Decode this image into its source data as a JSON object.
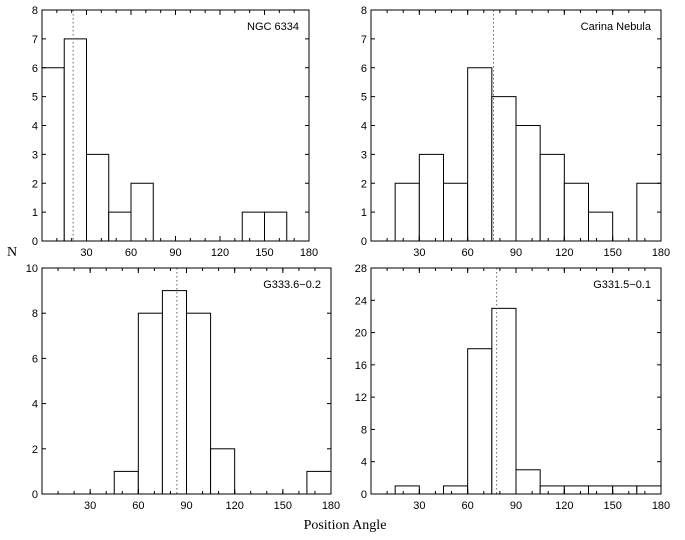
{
  "figure": {
    "shared_ylabel": "N",
    "shared_xlabel": "Position Angle"
  },
  "chart_data": [
    {
      "type": "bar",
      "title": "NGC 6334",
      "xlabel": "",
      "ylabel": "",
      "bin_width": 15,
      "bin_starts": [
        0,
        15,
        30,
        45,
        60,
        75,
        90,
        105,
        120,
        135,
        150,
        165
      ],
      "values": [
        6,
        7,
        3,
        1,
        2,
        0,
        0,
        0,
        0,
        1,
        1,
        0
      ],
      "xlim": [
        0,
        180
      ],
      "ylim": [
        0,
        8
      ],
      "xticks": [
        30,
        60,
        90,
        120,
        150,
        180
      ],
      "yticks": [
        0,
        1,
        2,
        3,
        4,
        5,
        6,
        7,
        8
      ],
      "mean_line": 21,
      "mean_line_style": "dotted"
    },
    {
      "type": "bar",
      "title": "Carina Nebula",
      "xlabel": "",
      "ylabel": "",
      "bin_width": 15,
      "bin_starts": [
        0,
        15,
        30,
        45,
        60,
        75,
        90,
        105,
        120,
        135,
        150,
        165
      ],
      "values": [
        0,
        2,
        3,
        2,
        6,
        5,
        4,
        3,
        2,
        1,
        0,
        2
      ],
      "xlim": [
        0,
        180
      ],
      "ylim": [
        0,
        8
      ],
      "xticks": [
        30,
        60,
        90,
        120,
        150,
        180
      ],
      "yticks": [
        0,
        1,
        2,
        3,
        4,
        5,
        6,
        7,
        8
      ],
      "mean_line": 76,
      "mean_line_style": "dotted"
    },
    {
      "type": "bar",
      "title": "G333.6−0.2",
      "xlabel": "",
      "ylabel": "",
      "bin_width": 15,
      "bin_starts": [
        0,
        15,
        30,
        45,
        60,
        75,
        90,
        105,
        120,
        135,
        150,
        165
      ],
      "values": [
        0,
        0,
        0,
        1,
        8,
        9,
        8,
        2,
        0,
        0,
        0,
        1
      ],
      "xlim": [
        0,
        180
      ],
      "ylim": [
        0,
        10
      ],
      "xticks": [
        30,
        60,
        90,
        120,
        150,
        180
      ],
      "yticks": [
        0,
        2,
        4,
        6,
        8,
        10
      ],
      "mean_line": 84,
      "mean_line_style": "dotted"
    },
    {
      "type": "bar",
      "title": "G331.5−0.1",
      "xlabel": "",
      "ylabel": "",
      "bin_width": 15,
      "bin_starts": [
        0,
        15,
        30,
        45,
        60,
        75,
        90,
        105,
        120,
        135,
        150,
        165
      ],
      "values": [
        0,
        1,
        0,
        1,
        18,
        23,
        3,
        1,
        1,
        1,
        1,
        1
      ],
      "xlim": [
        0,
        180
      ],
      "ylim": [
        0,
        28
      ],
      "xticks": [
        30,
        60,
        90,
        120,
        150,
        180
      ],
      "yticks": [
        0,
        4,
        8,
        12,
        16,
        20,
        24,
        28
      ],
      "mean_line": 78,
      "mean_line_style": "dotted"
    }
  ]
}
